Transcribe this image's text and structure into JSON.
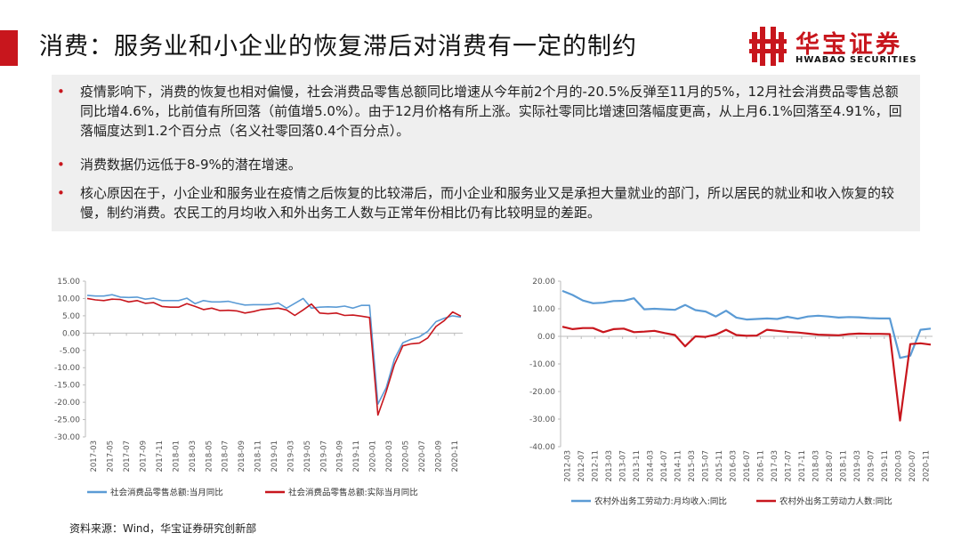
{
  "header": {
    "title": "消费：服务业和小企业的恢复滞后对消费有一定的制约",
    "logo_cn": "华宝证券",
    "logo_en": "HWABAO SECURITIES",
    "accent_color": "#c8161d"
  },
  "bullets": [
    "疫情影响下，消费的恢复也相对偏慢，社会消费品零售总额同比增速从今年前2个月的-20.5%反弹至11月的5%，12月社会消费品零售总额同比增4.6%，比前值有所回落（前值增5.0%）。由于12月价格有所上涨。实际社零同比增速回落幅度更高，从上月6.1%回落至4.91%，回落幅度达到1.2个百分点（名义社零回落0.4个百分点）。",
    "消费数据仍远低于8-9%的潜在增速。",
    "核心原因在于，小企业和服务业在疫情之后恢复的比较滞后，而小企业和服务业又是承担大量就业的部门，所以居民的就业和收入恢复的较慢，制约消费。农民工的月均收入和外出务工人数与正常年份相比仍有比较明显的差距。"
  ],
  "source": "资料来源：Wind，华宝证券研究创新部",
  "chart_data": [
    {
      "type": "line",
      "title": "",
      "xlabel": "",
      "ylabel": "",
      "ylim": [
        -30,
        15
      ],
      "yticks": [
        "15.00",
        "10.00",
        "5.00",
        "0.00",
        "-5.00",
        "-10.00",
        "-15.00",
        "-20.00",
        "-25.00",
        "-30.00"
      ],
      "xtick_labels": [
        "2017-03",
        "2017-05",
        "2017-07",
        "2017-09",
        "2017-11",
        "2018-01",
        "2018-03",
        "2018-05",
        "2018-07",
        "2018-09",
        "2018-11",
        "2019-01",
        "2019-03",
        "2019-05",
        "2019-07",
        "2019-09",
        "2019-11",
        "2020-01",
        "2020-03",
        "2020-05",
        "2020-07",
        "2020-09",
        "2020-11"
      ],
      "legend": "bottom",
      "series": [
        {
          "name": "社会消费品零售总额:当月同比",
          "color": "#5b9bd5",
          "values": [
            10.9,
            10.7,
            10.7,
            11.1,
            10.4,
            10.3,
            10.4,
            9.8,
            10.1,
            9.4,
            9.4,
            9.4,
            10.1,
            8.5,
            9.4,
            9.0,
            9.0,
            9.2,
            8.6,
            8.1,
            8.2,
            8.2,
            8.2,
            8.7,
            7.2,
            8.6,
            10.0,
            7.2,
            7.5,
            7.6,
            7.5,
            7.8,
            7.2,
            8.0,
            8.0,
            -20.5,
            -15.8,
            -7.5,
            -2.8,
            -1.8,
            -1.1,
            0.5,
            3.3,
            4.3,
            5.0,
            4.6
          ]
        },
        {
          "name": "社会消费品零售总额:实际当月同比",
          "color": "#c8161d",
          "values": [
            10.0,
            9.6,
            9.4,
            9.8,
            9.7,
            9.0,
            9.4,
            8.6,
            8.8,
            7.7,
            7.5,
            7.5,
            8.5,
            7.7,
            6.8,
            7.2,
            6.5,
            6.6,
            6.4,
            5.8,
            6.2,
            6.8,
            7.0,
            7.2,
            6.7,
            5.1,
            6.7,
            8.4,
            5.8,
            5.6,
            5.8,
            5.1,
            5.2,
            4.9,
            4.5,
            -23.7,
            -16.9,
            -9.1,
            -3.7,
            -3.1,
            -2.9,
            -1.4,
            1.9,
            3.6,
            6.1,
            4.9
          ]
        }
      ]
    },
    {
      "type": "line",
      "title": "",
      "xlabel": "",
      "ylabel": "",
      "ylim": [
        -40,
        20
      ],
      "yticks": [
        "20.00",
        "10.00",
        "0.00",
        "-10.00",
        "-20.00",
        "-30.00",
        "-40.00"
      ],
      "xtick_labels": [
        "2012-03",
        "2012-07",
        "2012-11",
        "2013-03",
        "2013-07",
        "2013-11",
        "2014-03",
        "2014-07",
        "2014-11",
        "2015-03",
        "2015-07",
        "2015-11",
        "2016-03",
        "2016-07",
        "2016-11",
        "2017-03",
        "2017-07",
        "2017-11",
        "2018-03",
        "2018-07",
        "2018-11",
        "2019-03",
        "2019-07",
        "2019-11",
        "2020-03",
        "2020-07",
        "2020-11"
      ],
      "legend": "bottom",
      "series": [
        {
          "name": "农村外出务工劳动力:月均收入:同比",
          "color": "#5b9bd5",
          "values": [
            16.5,
            15.0,
            13.0,
            12.0,
            12.2,
            12.8,
            12.9,
            13.8,
            9.8,
            10.0,
            9.8,
            9.6,
            11.4,
            9.5,
            9.0,
            7.2,
            9.3,
            6.8,
            6.1,
            6.3,
            6.5,
            6.3,
            7.1,
            6.4,
            7.2,
            7.5,
            7.2,
            6.8,
            7.0,
            6.9,
            6.6,
            6.5,
            6.5,
            -7.8,
            -7.0,
            2.4,
            2.8
          ]
        },
        {
          "name": "农村外出务工劳动力人数:同比",
          "color": "#c8161d",
          "values": [
            3.5,
            2.6,
            3.0,
            3.0,
            1.5,
            2.6,
            2.8,
            1.5,
            1.7,
            2.0,
            1.2,
            0.5,
            -3.6,
            0.0,
            -0.2,
            0.6,
            2.4,
            0.5,
            0.2,
            0.3,
            2.4,
            2.0,
            1.6,
            1.4,
            1.0,
            0.6,
            0.5,
            0.4,
            0.8,
            1.0,
            0.9,
            0.9,
            0.8,
            -30.5,
            -2.8,
            -2.5,
            -3.0
          ]
        }
      ]
    }
  ]
}
